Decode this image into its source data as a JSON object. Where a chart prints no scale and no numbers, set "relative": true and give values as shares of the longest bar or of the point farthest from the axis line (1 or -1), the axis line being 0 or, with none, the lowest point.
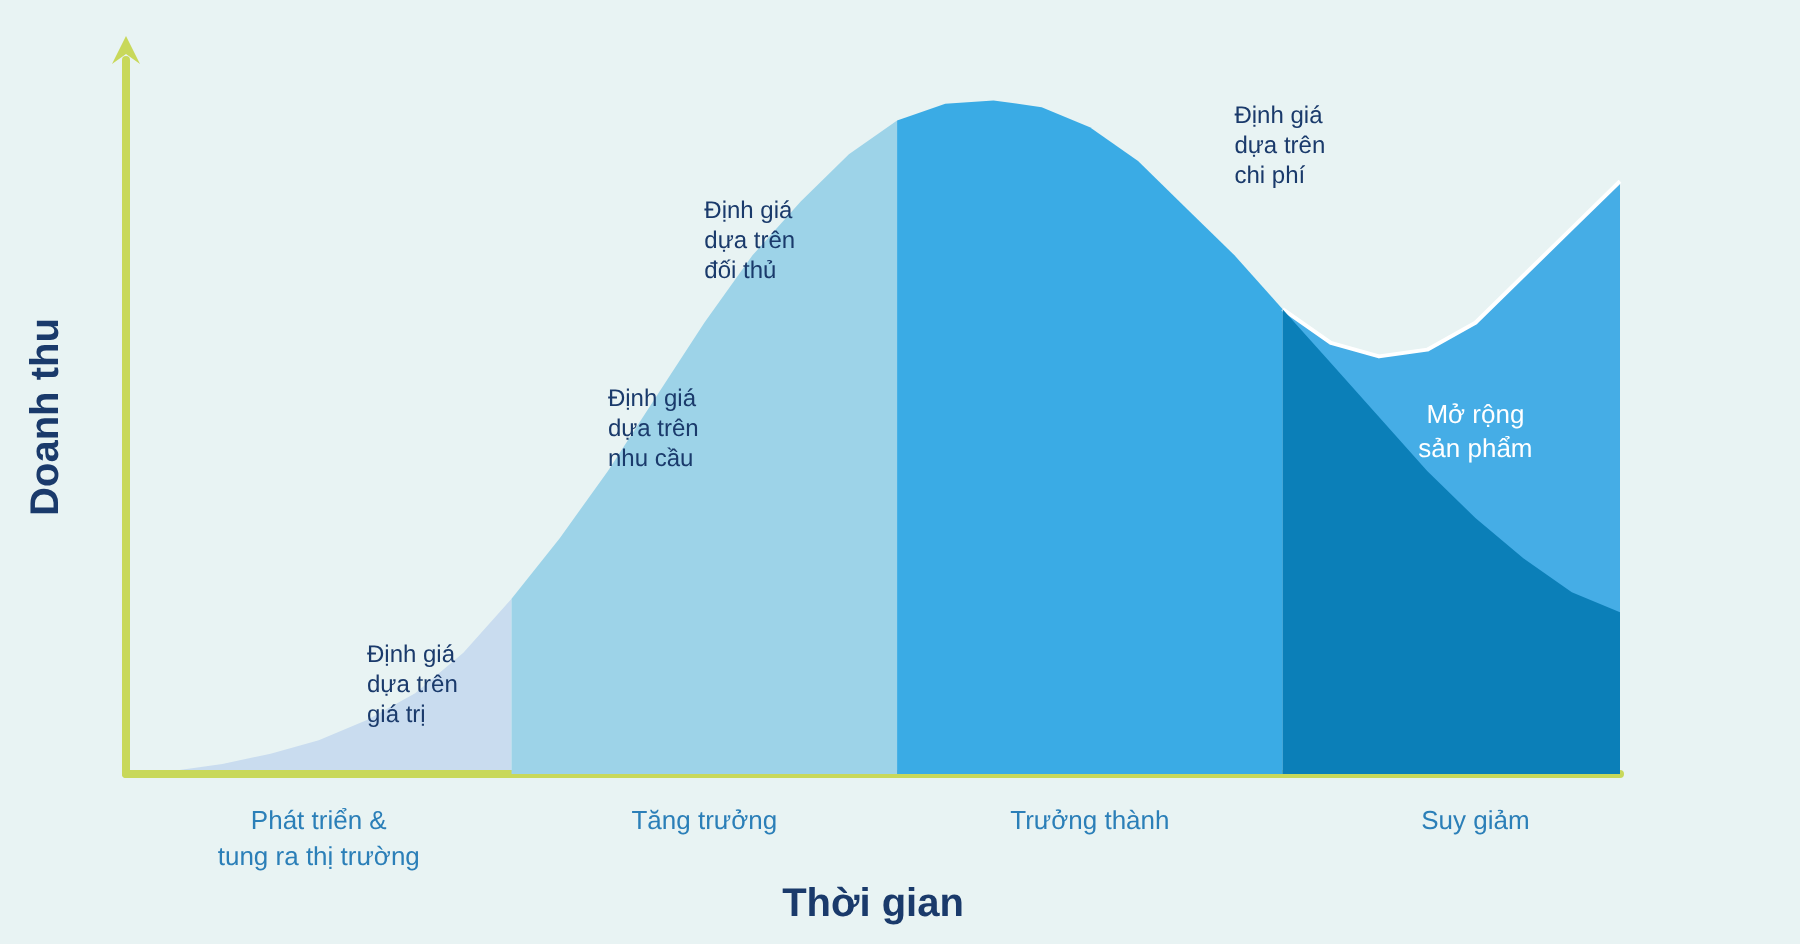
{
  "chart_data": {
    "type": "area",
    "relative": true,
    "xlabel": "Thời gian",
    "ylabel": "Doanh thu",
    "categories": [
      null,
      null,
      null,
      null,
      "Phát triển &\ntung ra thị trường",
      null,
      null,
      null,
      null,
      null,
      null,
      null,
      "Tăng trưởng",
      null,
      null,
      null,
      null,
      null,
      null,
      null,
      "Trưởng thành",
      null,
      null,
      null,
      null,
      null,
      null,
      null,
      "Suy giảm",
      null,
      null,
      null
    ],
    "series": [
      {
        "color": "#c9dcef",
        "values": [
          0,
          0.005,
          0.015,
          0.03,
          0.05,
          0.08,
          0.12,
          0.18,
          0.26,
          null,
          null,
          null,
          null,
          null,
          null,
          null,
          null,
          null,
          null,
          null,
          null,
          null,
          null,
          null,
          null,
          null,
          null,
          null,
          null,
          null,
          null,
          null
        ]
      },
      {
        "color": "#9dd3e8",
        "values": [
          null,
          null,
          null,
          null,
          null,
          null,
          null,
          null,
          0.26,
          0.35,
          0.45,
          0.56,
          0.67,
          0.77,
          0.85,
          0.92,
          0.97,
          null,
          null,
          null,
          null,
          null,
          null,
          null,
          null,
          null,
          null,
          null,
          null,
          null,
          null,
          null
        ]
      },
      {
        "color": "#3aabe5",
        "values": [
          null,
          null,
          null,
          null,
          null,
          null,
          null,
          null,
          null,
          null,
          null,
          null,
          null,
          null,
          null,
          null,
          0.97,
          0.995,
          1.0,
          0.99,
          0.96,
          0.91,
          0.84,
          0.77,
          0.69,
          null,
          null,
          null,
          null,
          null,
          null,
          null
        ]
      },
      {
        "name": "Mở rộng sản phẩm",
        "color": "#45ade6",
        "values": [
          null,
          null,
          null,
          null,
          null,
          null,
          null,
          null,
          null,
          null,
          null,
          null,
          null,
          null,
          null,
          null,
          null,
          null,
          null,
          null,
          null,
          null,
          null,
          null,
          0.69,
          0.64,
          0.62,
          0.63,
          0.67,
          0.74,
          0.81,
          0.88
        ]
      },
      {
        "color": "#0b7fb8",
        "values": [
          null,
          null,
          null,
          null,
          null,
          null,
          null,
          null,
          null,
          null,
          null,
          null,
          null,
          null,
          null,
          null,
          null,
          null,
          null,
          null,
          null,
          null,
          null,
          null,
          0.69,
          0.61,
          0.53,
          0.45,
          0.38,
          0.32,
          0.27,
          0.24
        ]
      }
    ],
    "annotations": [
      "Định giá\ndựa trên\ngiá trị",
      "Định giá\ndựa trên\nnhu cầu",
      "Định giá\ndựa trên\nđối thủ",
      "Định giá\ndựa trên\nchi phí"
    ],
    "legend": false,
    "grid": false,
    "marker": "none"
  }
}
